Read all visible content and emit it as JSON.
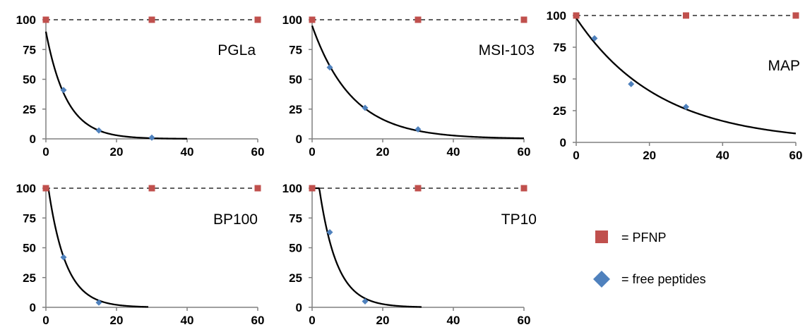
{
  "colors": {
    "pfnp": "#c0504d",
    "free_peptides": "#4f81bd",
    "fit_curve": "#000000",
    "axis": "#808080"
  },
  "legend": {
    "placement": "bottom-right",
    "items": [
      {
        "label": "= PFNP",
        "marker": "square",
        "color": "#c0504d"
      },
      {
        "label": "= free peptides",
        "marker": "diamond",
        "color": "#4f81bd"
      }
    ]
  },
  "chart_data": [
    {
      "type": "scatter",
      "panel_label": "PGLa",
      "xlim": [
        0,
        60
      ],
      "ylim": [
        0,
        100
      ],
      "x_ticks": [
        "0",
        "20",
        "40",
        "60"
      ],
      "y_ticks": [
        "0",
        "25",
        "50",
        "75",
        "100"
      ],
      "series": [
        {
          "marker": "square",
          "color": "#c0504d",
          "x": [
            0,
            30,
            60
          ],
          "y": [
            100,
            100,
            100
          ],
          "reference_line": 100
        },
        {
          "marker": "diamond",
          "color": "#4f81bd",
          "x": [
            0,
            5,
            15,
            30
          ],
          "y": [
            100,
            41,
            7,
            1
          ]
        }
      ],
      "fit": {
        "model": "exponential decay",
        "a": 90,
        "k": 0.17,
        "x_end": 40
      }
    },
    {
      "type": "scatter",
      "panel_label": "MSI-103",
      "xlim": [
        0,
        60
      ],
      "ylim": [
        0,
        100
      ],
      "x_ticks": [
        "0",
        "20",
        "40",
        "60"
      ],
      "y_ticks": [
        "0",
        "25",
        "50",
        "75",
        "100"
      ],
      "series": [
        {
          "marker": "square",
          "color": "#c0504d",
          "x": [
            0,
            30,
            60
          ],
          "y": [
            100,
            100,
            100
          ],
          "reference_line": 100
        },
        {
          "marker": "diamond",
          "color": "#4f81bd",
          "x": [
            0,
            5,
            15,
            30
          ],
          "y": [
            100,
            60,
            26,
            8
          ]
        }
      ],
      "fit": {
        "model": "exponential decay",
        "a": 95,
        "k": 0.088,
        "x_end": 60
      }
    },
    {
      "type": "scatter",
      "panel_label": "MAP",
      "xlim": [
        0,
        60
      ],
      "ylim": [
        0,
        100
      ],
      "x_ticks": [
        "0",
        "20",
        "40",
        "60"
      ],
      "y_ticks": [
        "0",
        "25",
        "50",
        "75",
        "100"
      ],
      "series": [
        {
          "marker": "square",
          "color": "#c0504d",
          "x": [
            0,
            30,
            60
          ],
          "y": [
            100,
            100,
            100
          ],
          "reference_line": 100
        },
        {
          "marker": "diamond",
          "color": "#4f81bd",
          "x": [
            0,
            5,
            15,
            30
          ],
          "y": [
            100,
            82,
            46,
            28
          ]
        }
      ],
      "fit": {
        "model": "exponential decay",
        "a": 98,
        "k": 0.044,
        "x_end": 60
      }
    },
    {
      "type": "scatter",
      "panel_label": "BP100",
      "xlim": [
        0,
        60
      ],
      "ylim": [
        0,
        100
      ],
      "x_ticks": [
        "0",
        "20",
        "40",
        "60"
      ],
      "y_ticks": [
        "0",
        "25",
        "50",
        "75",
        "100"
      ],
      "series": [
        {
          "marker": "square",
          "color": "#c0504d",
          "x": [
            0,
            30,
            60
          ],
          "y": [
            100,
            100,
            100
          ],
          "reference_line": 100
        },
        {
          "marker": "diamond",
          "color": "#4f81bd",
          "x": [
            5,
            15
          ],
          "y": [
            42,
            4
          ]
        }
      ],
      "fit": {
        "model": "exponential decay",
        "a": 115,
        "k": 0.2,
        "x_end": 29
      }
    },
    {
      "type": "scatter",
      "panel_label": "TP10",
      "xlim": [
        0,
        60
      ],
      "ylim": [
        0,
        100
      ],
      "x_ticks": [
        "0",
        "20",
        "40",
        "60"
      ],
      "y_ticks": [
        "0",
        "25",
        "50",
        "75",
        "100"
      ],
      "series": [
        {
          "marker": "square",
          "color": "#c0504d",
          "x": [
            0,
            30,
            60
          ],
          "y": [
            100,
            100,
            100
          ],
          "reference_line": 100
        },
        {
          "marker": "diamond",
          "color": "#4f81bd",
          "x": [
            5,
            15
          ],
          "y": [
            63,
            5
          ]
        }
      ],
      "fit": {
        "model": "exponential decay",
        "a": 150,
        "k": 0.2,
        "x_end": 31
      }
    }
  ]
}
